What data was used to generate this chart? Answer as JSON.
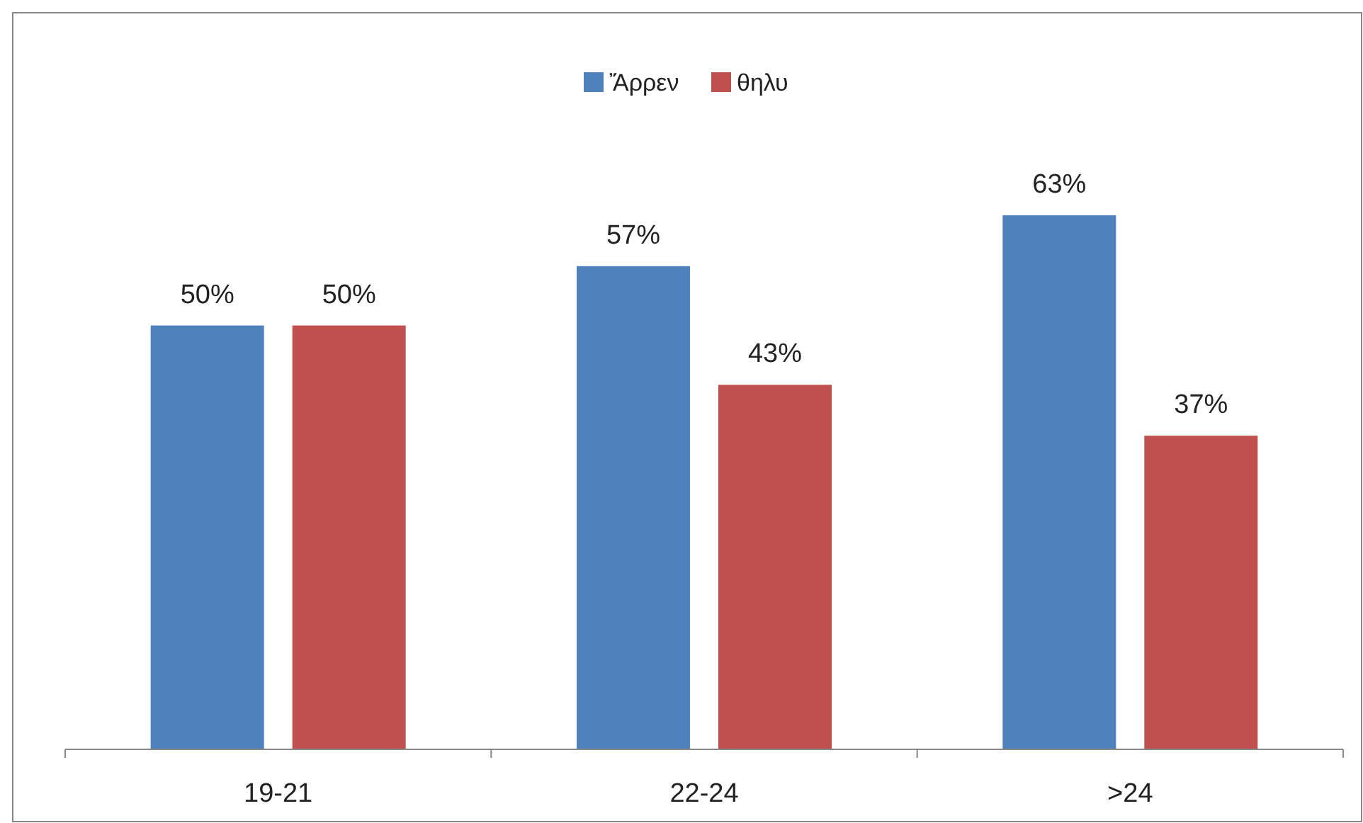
{
  "chart_data": {
    "type": "bar",
    "categories": [
      "19-21",
      "22-24",
      ">24"
    ],
    "series": [
      {
        "name": "Ἄρρεν",
        "color": "#4f81bd",
        "values": [
          50,
          57,
          63
        ],
        "value_labels": [
          "50%",
          "57%",
          "63%"
        ]
      },
      {
        "name": "θηλυ",
        "color": "#c0504d",
        "values": [
          50,
          43,
          37
        ],
        "value_labels": [
          "50%",
          "43%",
          "37%"
        ]
      }
    ],
    "legend": "top"
  }
}
